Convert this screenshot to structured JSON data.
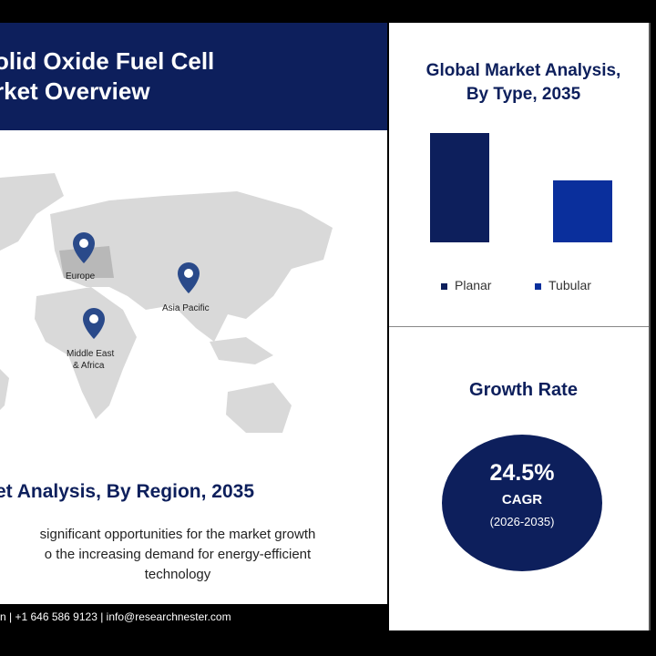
{
  "header": {
    "title": "olid Oxide Fuel Cell\nrket Overview"
  },
  "map": {
    "pins": [
      {
        "label": "Europe"
      },
      {
        "label": "Asia Pacific"
      },
      {
        "label": "Middle East\n& Africa"
      }
    ],
    "pin_color": "#2a4a8a"
  },
  "region": {
    "title": "et Analysis, By Region, 2035",
    "description": "significant opportunities for the market growth\no the increasing demand for energy-efficient\ntechnology"
  },
  "footer": {
    "contact": "n  | +1 646 586 9123 | info@researchnester.com"
  },
  "chart_data": {
    "type": "bar",
    "title": "Global Market Analysis,\nBy Type, 2035",
    "categories": [
      "Planar",
      "Tubular"
    ],
    "values": [
      1.0,
      0.57
    ],
    "colors": [
      "#0d1f5c",
      "#0a2f9c"
    ],
    "legend": "bottom"
  },
  "growth": {
    "title": "Growth Rate",
    "value": "24.5%",
    "label": "CAGR",
    "period": "(2026-2035)"
  }
}
